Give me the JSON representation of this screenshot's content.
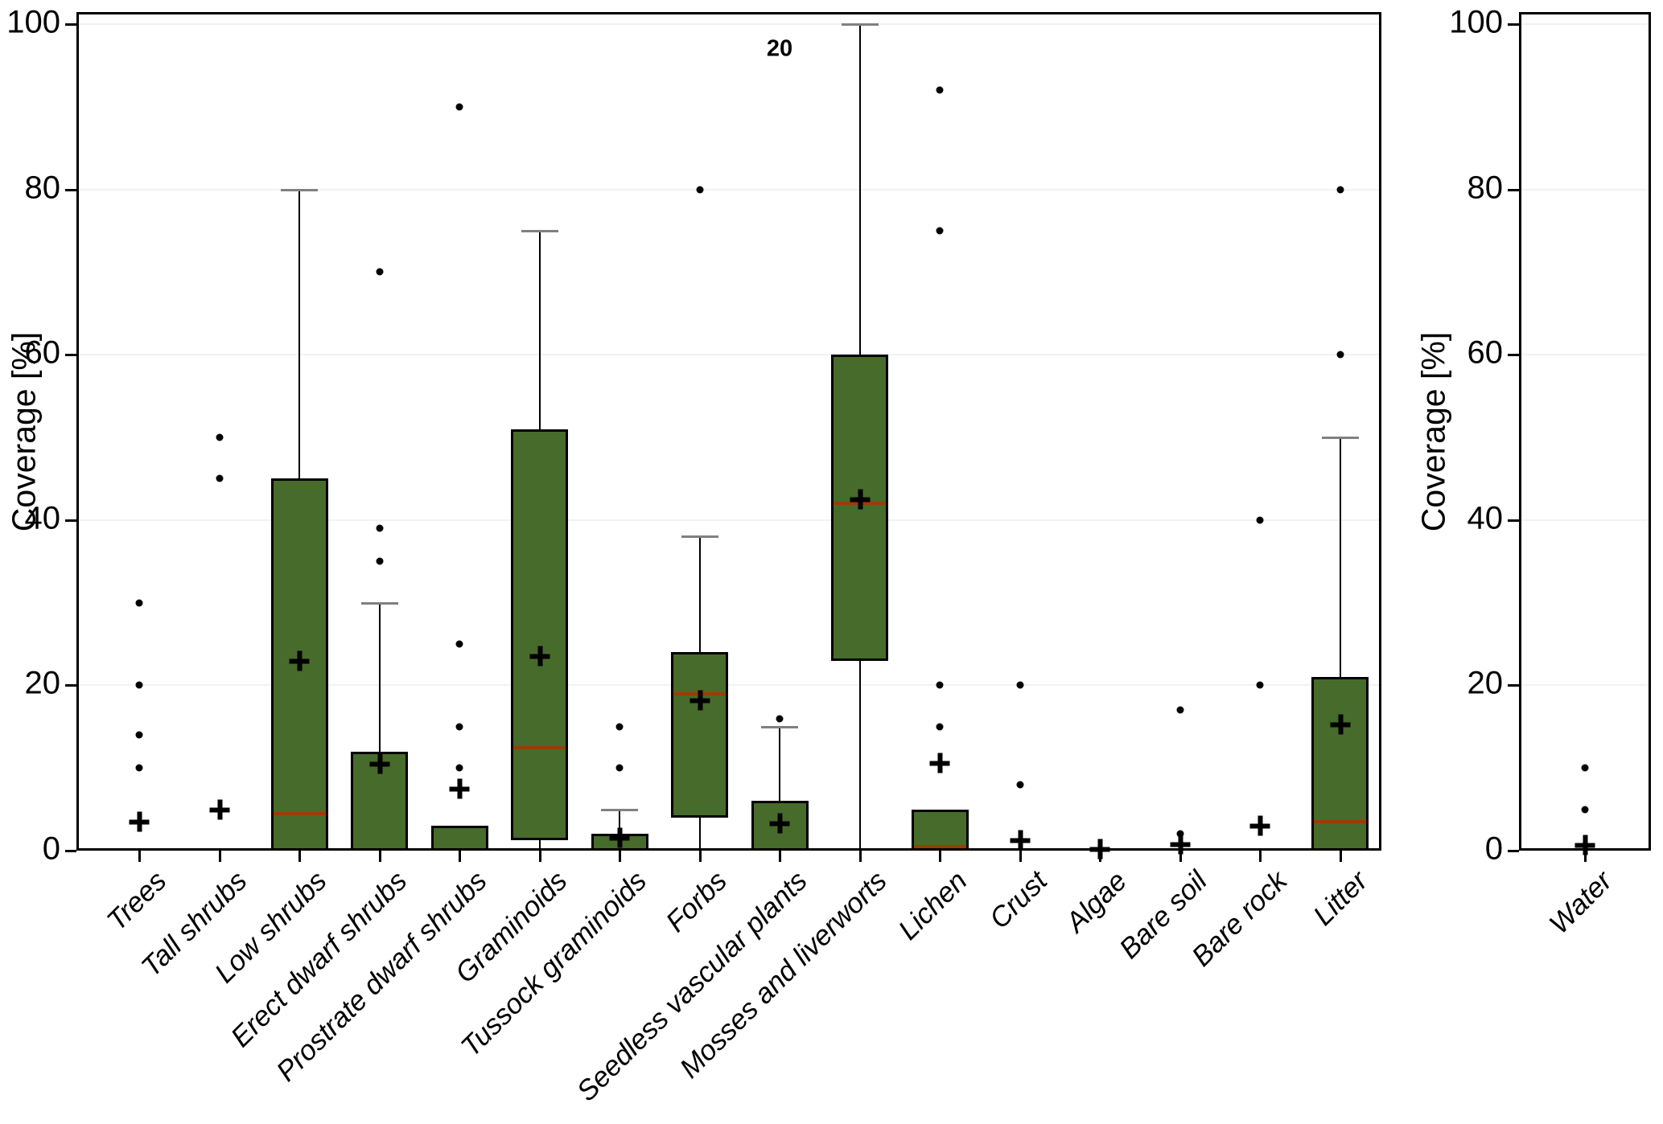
{
  "colors": {
    "box_fill": "#476b2b",
    "box_border": "#000000",
    "median": "#9c3d00",
    "whisker": "#000000",
    "whisker_cap": "#808080",
    "outlier": "#000000",
    "mean_marker": "#000000",
    "gridline": "#f2f2f2",
    "frame": "#000000",
    "background": "#ffffff"
  },
  "chart_data": [
    {
      "type": "boxplot",
      "panel": "main",
      "title": "",
      "ylabel": "Coverage [%]",
      "xlabel": "",
      "ylim": [
        0,
        100
      ],
      "yticks": [
        0,
        20,
        40,
        60,
        80,
        100
      ],
      "grid": "horizontal",
      "legend": "none",
      "annotation": {
        "text": "20",
        "category_index": 8,
        "value": 97
      },
      "categories": [
        "Trees",
        "Tall shrubs",
        "Low shrubs",
        "Erect dwarf shrubs",
        "Prostrate dwarf shrubs",
        "Graminoids",
        "Tussock graminoids",
        "Forbs",
        "Seedless vascular plants",
        "Mosses and liverworts",
        "Lichen",
        "Crust",
        "Algae",
        "Bare soil",
        "Bare rock",
        "Litter"
      ],
      "boxes": [
        {
          "label": "Trees",
          "q1": null,
          "median": null,
          "q3": null,
          "whisker_low": null,
          "whisker_high": null,
          "mean": 3.5,
          "outliers": [
            10,
            14,
            20,
            30
          ]
        },
        {
          "label": "Tall shrubs",
          "q1": null,
          "median": null,
          "q3": null,
          "whisker_low": null,
          "whisker_high": null,
          "mean": 5,
          "outliers": [
            45,
            50
          ]
        },
        {
          "label": "Low shrubs",
          "q1": 0,
          "median": 4.5,
          "q3": 45,
          "whisker_low": null,
          "whisker_high": 80,
          "mean": 23,
          "outliers": []
        },
        {
          "label": "Erect dwarf shrubs",
          "q1": 0,
          "median": 0,
          "q3": 12,
          "whisker_low": null,
          "whisker_high": 30,
          "mean": 10.5,
          "outliers": [
            35,
            39,
            70
          ]
        },
        {
          "label": "Prostrate dwarf shrubs",
          "q1": 0,
          "median": 0,
          "q3": 3,
          "whisker_low": null,
          "whisker_high": null,
          "mean": 7.5,
          "outliers": [
            10,
            15,
            25,
            90
          ]
        },
        {
          "label": "Graminoids",
          "q1": 1.3,
          "median": 12.5,
          "q3": 51,
          "whisker_low": 0,
          "whisker_high": 75,
          "mean": 23.5,
          "outliers": []
        },
        {
          "label": "Tussock graminoids",
          "q1": 0,
          "median": 0,
          "q3": 2,
          "whisker_low": null,
          "whisker_high": 5,
          "mean": 1.6,
          "outliers": [
            10,
            15
          ]
        },
        {
          "label": "Forbs",
          "q1": 4,
          "median": 19,
          "q3": 24,
          "whisker_low": 0,
          "whisker_high": 38,
          "mean": 18.2,
          "outliers": [
            80
          ]
        },
        {
          "label": "Seedless vascular plants",
          "q1": 0,
          "median": 0,
          "q3": 6,
          "whisker_low": null,
          "whisker_high": 15,
          "mean": 3.3,
          "outliers": [
            16
          ]
        },
        {
          "label": "Mosses and liverworts",
          "q1": 23,
          "median": 42,
          "q3": 60,
          "whisker_low": 0,
          "whisker_high": 100,
          "mean": 42.5,
          "outliers": []
        },
        {
          "label": "Lichen",
          "q1": 0,
          "median": 0.5,
          "q3": 5,
          "whisker_low": null,
          "whisker_high": null,
          "mean": 10.6,
          "outliers": [
            15,
            20,
            75,
            92
          ]
        },
        {
          "label": "Crust",
          "q1": null,
          "median": null,
          "q3": null,
          "whisker_low": null,
          "whisker_high": null,
          "mean": 1.3,
          "outliers": [
            8,
            20
          ]
        },
        {
          "label": "Algae",
          "q1": null,
          "median": null,
          "q3": null,
          "whisker_low": null,
          "whisker_high": null,
          "mean": 0.2,
          "outliers": []
        },
        {
          "label": "Bare soil",
          "q1": null,
          "median": null,
          "q3": null,
          "whisker_low": null,
          "whisker_high": null,
          "mean": 0.8,
          "outliers": [
            2,
            17
          ]
        },
        {
          "label": "Bare rock",
          "q1": null,
          "median": null,
          "q3": null,
          "whisker_low": null,
          "whisker_high": null,
          "mean": 3,
          "outliers": [
            20,
            40
          ]
        },
        {
          "label": "Litter",
          "q1": 0,
          "median": 3.5,
          "q3": 21,
          "whisker_low": null,
          "whisker_high": 50,
          "mean": 15.3,
          "outliers": [
            60,
            80
          ]
        }
      ]
    },
    {
      "type": "boxplot",
      "panel": "water",
      "title": "",
      "ylabel": "Coverage [%]",
      "xlabel": "",
      "ylim": [
        0,
        100
      ],
      "yticks": [
        0,
        20,
        40,
        60,
        80,
        100
      ],
      "grid": "horizontal",
      "legend": "none",
      "categories": [
        "Water"
      ],
      "boxes": [
        {
          "label": "Water",
          "q1": null,
          "median": null,
          "q3": null,
          "whisker_low": null,
          "whisker_high": null,
          "mean": 0.7,
          "outliers": [
            5,
            10
          ]
        }
      ]
    }
  ]
}
